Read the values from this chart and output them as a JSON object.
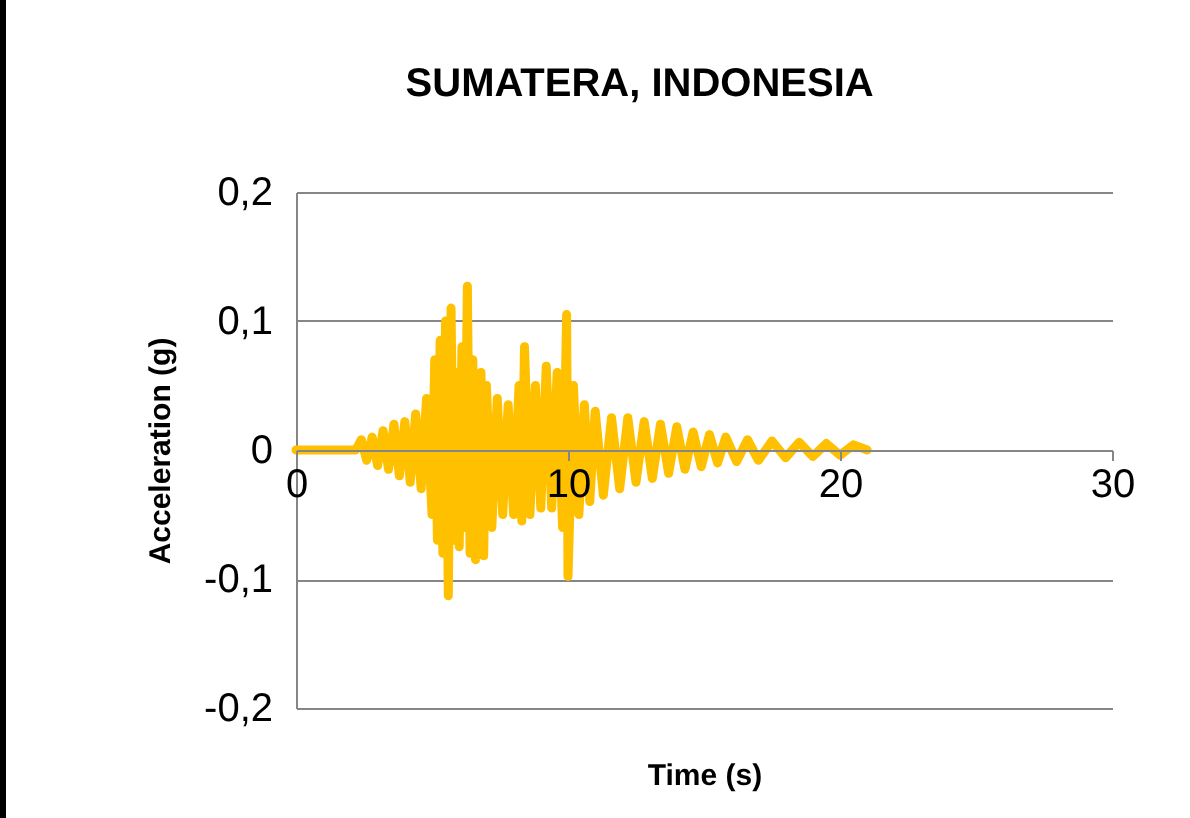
{
  "chart_data": {
    "type": "line",
    "title": "SUMATERA, INDONESIA",
    "xlabel": "Time (s)",
    "ylabel": "Acceleration (g)",
    "xlim": [
      0,
      30
    ],
    "xticks": [
      0,
      10,
      20,
      30
    ],
    "ylim": [
      -0.2,
      0.2
    ],
    "yticks": [
      {
        "value": -0.2,
        "label": "-0,2"
      },
      {
        "value": -0.1,
        "label": "-0,1"
      },
      0,
      {
        "value": 0.1,
        "label": "0,1"
      },
      {
        "value": 0.2,
        "label": "0,2"
      }
    ],
    "grid": "y",
    "line_style": "solid",
    "series": [
      {
        "color": "#ffc000",
        "x": [
          0,
          2.2,
          2.4,
          2.6,
          2.8,
          3.0,
          3.2,
          3.4,
          3.6,
          3.8,
          4.0,
          4.2,
          4.4,
          4.6,
          4.8,
          5.0,
          5.1,
          5.2,
          5.3,
          5.4,
          5.5,
          5.6,
          5.7,
          5.8,
          5.9,
          6.0,
          6.1,
          6.2,
          6.3,
          6.4,
          6.5,
          6.6,
          6.8,
          6.9,
          7.0,
          7.2,
          7.4,
          7.6,
          7.8,
          8.0,
          8.2,
          8.3,
          8.4,
          8.6,
          8.8,
          9.0,
          9.2,
          9.4,
          9.6,
          9.8,
          9.95,
          10.0,
          10.2,
          10.4,
          10.6,
          10.8,
          11.0,
          11.3,
          11.6,
          11.9,
          12.2,
          12.5,
          12.8,
          13.1,
          13.4,
          13.7,
          14.0,
          14.3,
          14.6,
          14.9,
          15.2,
          15.5,
          15.8,
          16.2,
          16.6,
          17.0,
          17.5,
          18.0,
          18.5,
          19.0,
          19.5,
          20.0,
          20.5,
          21.0
        ],
        "values": [
          0,
          0,
          0.008,
          -0.008,
          0.01,
          -0.012,
          0.015,
          -0.015,
          0.02,
          -0.02,
          0.022,
          -0.025,
          0.028,
          -0.03,
          0.04,
          -0.05,
          0.07,
          -0.07,
          0.085,
          -0.08,
          0.1,
          -0.113,
          0.11,
          -0.07,
          0.06,
          -0.075,
          0.08,
          -0.06,
          0.127,
          -0.08,
          0.07,
          -0.085,
          0.06,
          -0.082,
          0.05,
          -0.06,
          0.04,
          -0.05,
          0.035,
          -0.05,
          0.05,
          -0.055,
          0.08,
          -0.05,
          0.05,
          -0.045,
          0.065,
          -0.045,
          0.06,
          -0.06,
          0.105,
          -0.098,
          0.05,
          -0.05,
          0.035,
          -0.04,
          0.03,
          -0.035,
          0.025,
          -0.03,
          0.025,
          -0.025,
          0.022,
          -0.022,
          0.02,
          -0.018,
          0.018,
          -0.015,
          0.014,
          -0.013,
          0.012,
          -0.01,
          0.01,
          -0.009,
          0.008,
          -0.008,
          0.007,
          -0.006,
          0.006,
          -0.005,
          0.005,
          -0.004,
          0.004,
          0
        ]
      }
    ]
  }
}
